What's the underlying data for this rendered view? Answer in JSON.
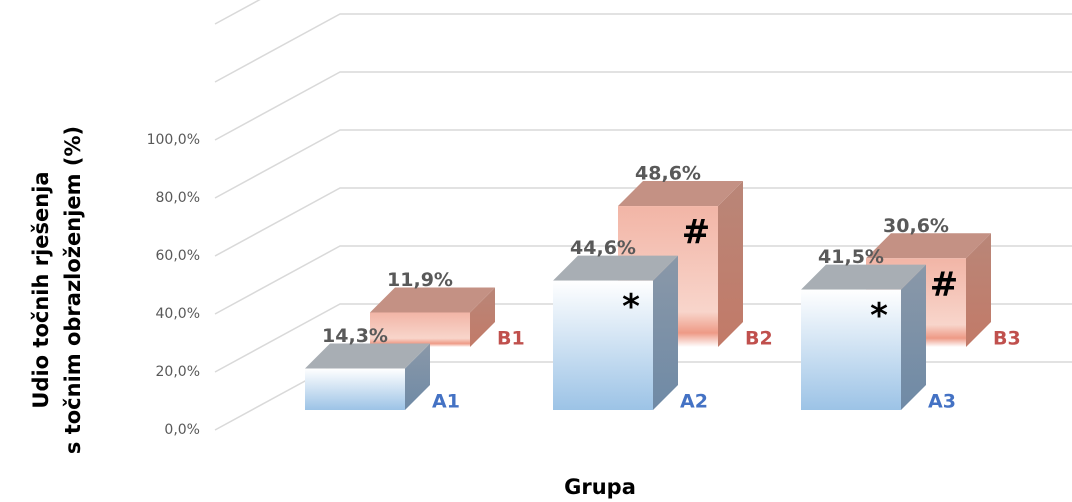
{
  "chart_data": {
    "type": "bar3d",
    "y_label": [
      "Udio točnih rješenja",
      "s točnim obrazloženjem (%)"
    ],
    "x_label": "Grupa",
    "ylim": [
      0,
      140
    ],
    "yticks": [
      {
        "value": 0,
        "label": "0,0%"
      },
      {
        "value": 20,
        "label": "20,0%"
      },
      {
        "value": 40,
        "label": "40,0%"
      },
      {
        "value": 60,
        "label": "60,0%"
      },
      {
        "value": 80,
        "label": "80,0%"
      },
      {
        "value": 100,
        "label": "100,0%"
      }
    ],
    "grid": true,
    "series": [
      {
        "color": "#9cc3e6",
        "labels": [
          "A1",
          "A2",
          "A3"
        ],
        "values": [
          14.3,
          44.6,
          41.5
        ],
        "value_labels": [
          "14,3%",
          "44,6%",
          "41,5%"
        ],
        "markers": [
          null,
          "*",
          "*"
        ]
      },
      {
        "color": "#f0a898",
        "labels": [
          "B1",
          "B2",
          "B3"
        ],
        "values": [
          11.9,
          48.6,
          30.6
        ],
        "value_labels": [
          "11,9%",
          "48,6%",
          "30,6%"
        ],
        "markers": [
          null,
          "#",
          "#"
        ]
      }
    ]
  }
}
